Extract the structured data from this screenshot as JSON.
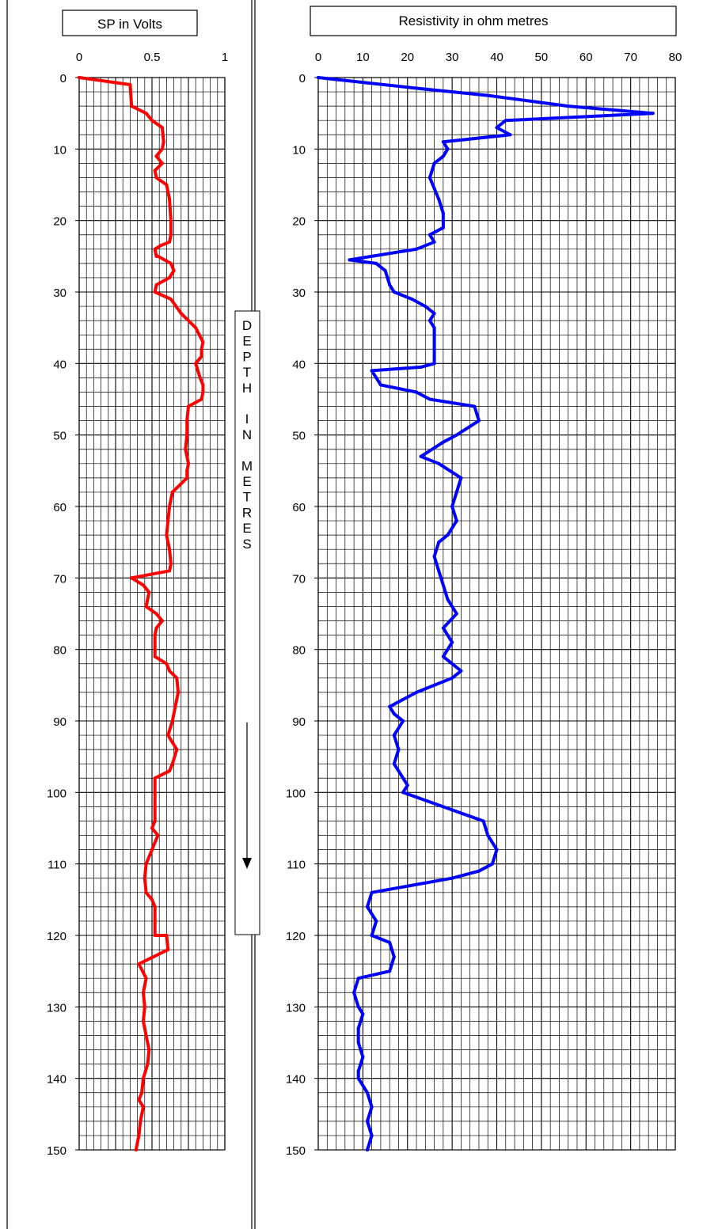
{
  "depth_label_letters": [
    "D",
    "E",
    "P",
    "T",
    "H",
    "",
    "I",
    "N",
    "",
    "M",
    "E",
    "T",
    "R",
    "E",
    "S"
  ],
  "chart_data": [
    {
      "type": "line",
      "title": "SP in Volts",
      "xlabel": "SP in Volts",
      "ylabel": "DEPTH IN METRES",
      "xlim": [
        0,
        1
      ],
      "ylim": [
        0,
        150
      ],
      "y_inverted": true,
      "x_ticks": [
        0,
        0.5,
        1
      ],
      "x_tick_labels": [
        "0",
        "0.5",
        "1"
      ],
      "y_ticks": [
        0,
        10,
        20,
        30,
        40,
        50,
        60,
        70,
        80,
        90,
        100,
        110,
        120,
        130,
        140,
        150
      ],
      "grid": true,
      "series": [
        {
          "color": "#ff0000",
          "x": [
            0,
            0.35,
            0.36,
            0.46,
            0.5,
            0.57,
            0.58,
            0.57,
            0.53,
            0.57,
            0.52,
            0.53,
            0.6,
            0.62,
            0.63,
            0.63,
            0.62,
            0.56,
            0.52,
            0.53,
            0.54,
            0.63,
            0.65,
            0.62,
            0.53,
            0.52,
            0.63,
            0.7,
            0.8,
            0.85,
            0.84,
            0.84,
            0.8,
            0.83,
            0.85,
            0.85,
            0.84,
            0.75,
            0.74,
            0.74,
            0.73,
            0.75,
            0.74,
            0.74,
            0.64,
            0.62,
            0.61,
            0.6,
            0.62,
            0.63,
            0.63,
            0.62,
            0.36,
            0.44,
            0.48,
            0.46,
            0.53,
            0.57,
            0.53,
            0.52,
            0.52,
            0.52,
            0.52,
            0.6,
            0.62,
            0.67,
            0.68,
            0.66,
            0.64,
            0.61,
            0.64,
            0.67,
            0.64,
            0.62,
            0.52,
            0.52,
            0.52,
            0.52,
            0.5,
            0.54,
            0.5,
            0.46,
            0.45,
            0.46,
            0.5,
            0.52,
            0.52,
            0.52,
            0.6,
            0.61,
            0.41,
            0.46,
            0.44,
            0.45,
            0.44,
            0.46,
            0.48,
            0.47,
            0.44,
            0.43,
            0.41,
            0.44,
            0.42,
            0.41,
            0.39
          ],
          "y": [
            0,
            1,
            4,
            5,
            6,
            7,
            9,
            10,
            11,
            12,
            13,
            14,
            15,
            17,
            20,
            22,
            23,
            23.5,
            24,
            25,
            25,
            26,
            27,
            28,
            29,
            30,
            31,
            33,
            35,
            37,
            38,
            39,
            40,
            42,
            43,
            44,
            45,
            46,
            48,
            50,
            52,
            54,
            55,
            56,
            58,
            60,
            62,
            64,
            66,
            68,
            68,
            69,
            70,
            71,
            72,
            74,
            75,
            76,
            77,
            78,
            79,
            80,
            81,
            82,
            83,
            84,
            86,
            88,
            90,
            92,
            93,
            94,
            96,
            97,
            98,
            100,
            102,
            104,
            105,
            106,
            108,
            110,
            112,
            114,
            115,
            116,
            118,
            120,
            120,
            122,
            124,
            126,
            128,
            130,
            132,
            134,
            136,
            138,
            140,
            142,
            143,
            144,
            146,
            148,
            150
          ]
        }
      ]
    },
    {
      "type": "line",
      "title": "Resistivity in ohm metres",
      "xlabel": "Resistivity in ohm metres",
      "ylabel": "DEPTH IN METRES",
      "xlim": [
        0,
        80
      ],
      "ylim": [
        0,
        150
      ],
      "y_inverted": true,
      "x_ticks": [
        0,
        10,
        20,
        30,
        40,
        50,
        60,
        70,
        80
      ],
      "y_ticks": [
        0,
        10,
        20,
        30,
        40,
        50,
        60,
        70,
        80,
        90,
        100,
        110,
        120,
        130,
        140,
        150
      ],
      "grid": true,
      "series": [
        {
          "color": "#0000ff",
          "x": [
            0,
            22,
            38,
            56,
            75,
            42,
            40,
            43,
            28,
            29,
            28,
            26,
            25,
            27,
            28,
            28,
            25,
            26,
            22,
            7,
            13,
            15,
            16,
            17,
            21,
            24,
            26,
            25,
            26,
            26,
            23,
            12,
            13,
            14,
            22,
            25,
            35,
            36,
            31,
            28,
            23,
            27,
            32,
            31,
            30,
            31,
            29,
            27,
            26,
            27,
            28,
            29,
            31,
            28,
            30,
            28,
            32,
            30,
            22,
            16,
            17,
            19,
            17,
            18,
            17,
            20,
            19,
            37,
            38,
            40,
            39,
            36,
            30,
            12,
            11,
            13,
            12,
            16,
            17,
            16,
            9,
            8,
            9,
            10,
            9,
            9,
            10,
            9,
            9,
            11,
            12,
            11,
            12,
            11
          ],
          "y": [
            0,
            1.5,
            2.5,
            4,
            5,
            6,
            7,
            8,
            9,
            10,
            11,
            12,
            14,
            17,
            19,
            21,
            22,
            23,
            24,
            25.5,
            26,
            27,
            29,
            30,
            31,
            32,
            33,
            34,
            35,
            40,
            40.5,
            41,
            42,
            43,
            44,
            45,
            46,
            48,
            50,
            51,
            53,
            54,
            56,
            58,
            60,
            62,
            64,
            65,
            67,
            69,
            71,
            73,
            75,
            77,
            79,
            81,
            83,
            84,
            86,
            88,
            89,
            90,
            92,
            94,
            96,
            99,
            100,
            104,
            106,
            108,
            110,
            111,
            112,
            114,
            116,
            118,
            120,
            121,
            123,
            125,
            126,
            128,
            130,
            131,
            133,
            135,
            137,
            139,
            140,
            142,
            144,
            146,
            148,
            150
          ]
        }
      ]
    }
  ]
}
